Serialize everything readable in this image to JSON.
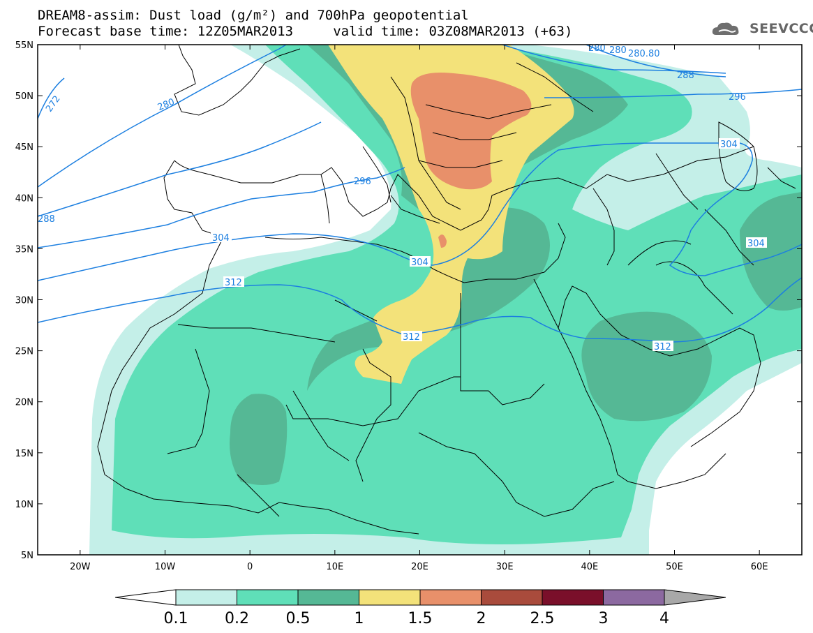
{
  "header": {
    "title_line1": "DREAM8-assim: Dust load (g/m²) and 700hPa geopotential",
    "title_line2": "Forecast base time: 12Z05MAR2013     valid time: 03Z08MAR2013 (+63)",
    "logo_text": "SEEVCCC",
    "logo_icon": "cloud-logo-icon"
  },
  "map": {
    "lon_range": [
      -25,
      65
    ],
    "lat_range": [
      5,
      55
    ],
    "lat_ticks": [
      "55N",
      "50N",
      "45N",
      "40N",
      "35N",
      "30N",
      "25N",
      "20N",
      "15N",
      "10N",
      "5N"
    ],
    "lon_ticks": [
      "20W",
      "10W",
      "0",
      "10E",
      "20E",
      "30E",
      "40E",
      "50E",
      "60E"
    ],
    "contour_color": "#1c7fe0",
    "contour_labels": [
      "272",
      "280",
      "280",
      "280",
      "280.80",
      "288",
      "288",
      "296",
      "296",
      "304",
      "304",
      "304",
      "304",
      "312",
      "312",
      "312"
    ]
  },
  "colorbar": {
    "levels": [
      "0.1",
      "0.2",
      "0.5",
      "1",
      "1.5",
      "2",
      "2.5",
      "3",
      "4"
    ],
    "colors": [
      "#c4efe8",
      "#5fdfb8",
      "#55b895",
      "#f3e27a",
      "#e8906a",
      "#a94b3c",
      "#7a0f2a",
      "#8c69a0"
    ],
    "upper_color": "#a8a8a8"
  }
}
